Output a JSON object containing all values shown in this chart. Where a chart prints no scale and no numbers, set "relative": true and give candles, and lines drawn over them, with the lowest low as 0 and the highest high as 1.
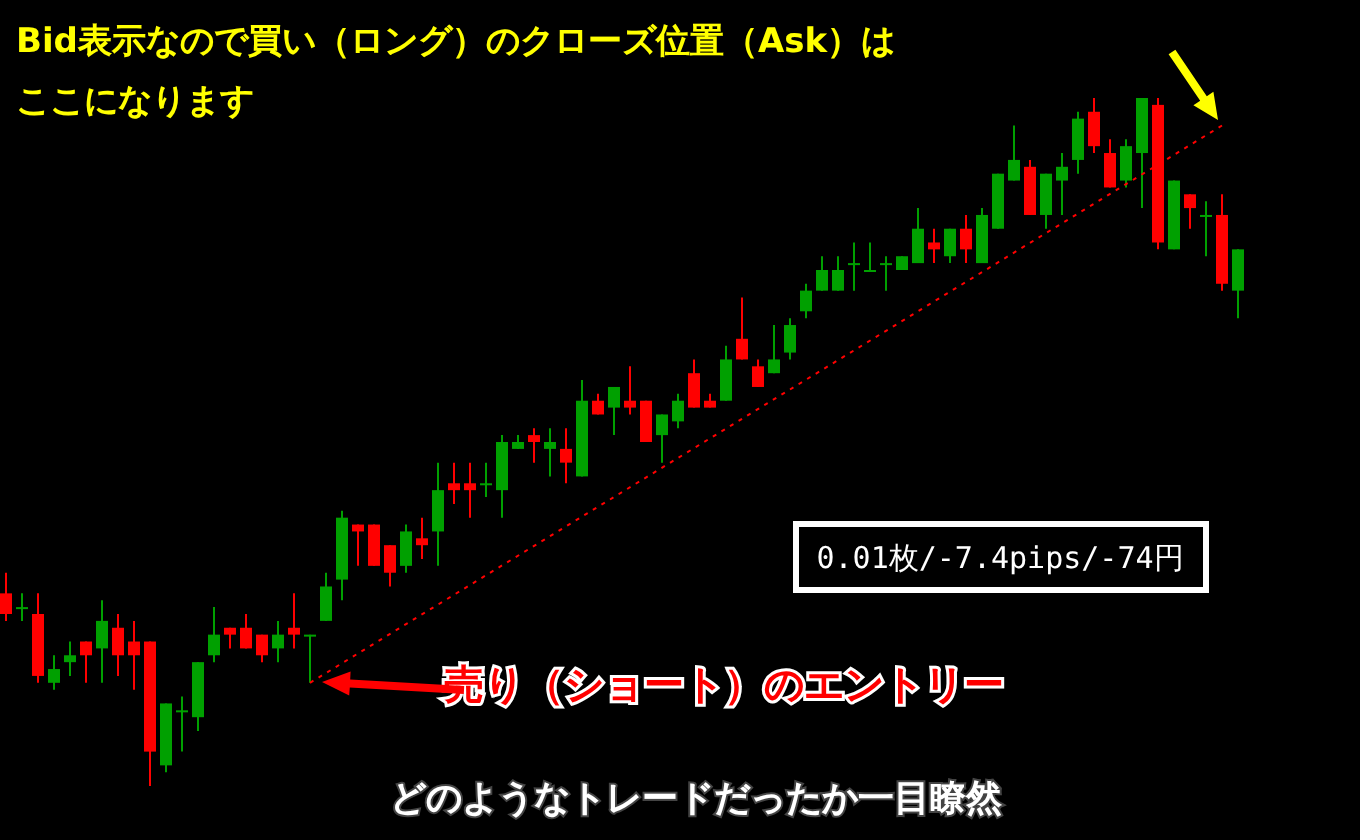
{
  "chart_data": {
    "type": "candlestick",
    "relative": true,
    "title": "Bid表示なので買い（ロング）のクローズ位置（Ask）はここになります",
    "categories": [
      null,
      null,
      null,
      null,
      null,
      null,
      null,
      null,
      null,
      null,
      null,
      null,
      null,
      null,
      null,
      null,
      null,
      null,
      null,
      null,
      null,
      null,
      null,
      null,
      null,
      null,
      null,
      null,
      null,
      null,
      null,
      null,
      null,
      null,
      null,
      null,
      null,
      null,
      null,
      null,
      null,
      null,
      null,
      null,
      null,
      null,
      null,
      null,
      null,
      null,
      null,
      null,
      null,
      null,
      null,
      null,
      null,
      null,
      null,
      null,
      null,
      null,
      null,
      null,
      null,
      null,
      null,
      null,
      null,
      null,
      null,
      null,
      null,
      null,
      null,
      null,
      null,
      null
    ],
    "ohlc": [
      [
        0.28,
        0.31,
        0.24,
        0.25
      ],
      [
        0.26,
        0.28,
        0.24,
        0.26
      ],
      [
        0.25,
        0.28,
        0.15,
        0.16
      ],
      [
        0.15,
        0.19,
        0.14,
        0.17
      ],
      [
        0.18,
        0.21,
        0.16,
        0.19
      ],
      [
        0.21,
        0.21,
        0.15,
        0.19
      ],
      [
        0.2,
        0.27,
        0.15,
        0.24
      ],
      [
        0.23,
        0.25,
        0.16,
        0.19
      ],
      [
        0.21,
        0.24,
        0.14,
        0.19
      ],
      [
        0.21,
        0.21,
        0,
        0.05
      ],
      [
        0.03,
        0.12,
        0.02,
        0.12
      ],
      [
        0.11,
        0.13,
        0.05,
        0.11
      ],
      [
        0.1,
        0.18,
        0.08,
        0.18
      ],
      [
        0.19,
        0.26,
        0.18,
        0.22
      ],
      [
        0.23,
        0.23,
        0.2,
        0.22
      ],
      [
        0.23,
        0.25,
        0.2,
        0.2
      ],
      [
        0.22,
        0.22,
        0.18,
        0.19
      ],
      [
        0.2,
        0.24,
        0.18,
        0.22
      ],
      [
        0.23,
        0.28,
        0.2,
        0.22
      ],
      [
        0.22,
        0.22,
        0.15,
        0.22
      ],
      [
        0.24,
        0.31,
        0.24,
        0.29
      ],
      [
        0.3,
        0.4,
        0.27,
        0.39
      ],
      [
        0.38,
        0.38,
        0.32,
        0.37
      ],
      [
        0.38,
        0.38,
        0.32,
        0.32
      ],
      [
        0.35,
        0.35,
        0.29,
        0.31
      ],
      [
        0.32,
        0.38,
        0.31,
        0.37
      ],
      [
        0.36,
        0.39,
        0.33,
        0.35
      ],
      [
        0.37,
        0.47,
        0.32,
        0.43
      ],
      [
        0.44,
        0.47,
        0.41,
        0.43
      ],
      [
        0.44,
        0.47,
        0.39,
        0.43
      ],
      [
        0.44,
        0.47,
        0.42,
        0.44
      ],
      [
        0.43,
        0.51,
        0.39,
        0.5
      ],
      [
        0.49,
        0.51,
        0.49,
        0.5
      ],
      [
        0.51,
        0.52,
        0.47,
        0.5
      ],
      [
        0.49,
        0.52,
        0.45,
        0.5
      ],
      [
        0.49,
        0.52,
        0.44,
        0.47
      ],
      [
        0.45,
        0.59,
        0.45,
        0.56
      ],
      [
        0.56,
        0.57,
        0.54,
        0.54
      ],
      [
        0.55,
        0.58,
        0.51,
        0.58
      ],
      [
        0.56,
        0.61,
        0.54,
        0.55
      ],
      [
        0.56,
        0.56,
        0.5,
        0.5
      ],
      [
        0.51,
        0.54,
        0.47,
        0.54
      ],
      [
        0.53,
        0.57,
        0.52,
        0.56
      ],
      [
        0.6,
        0.62,
        0.55,
        0.55
      ],
      [
        0.56,
        0.57,
        0.55,
        0.55
      ],
      [
        0.56,
        0.64,
        0.56,
        0.62
      ],
      [
        0.65,
        0.71,
        0.62,
        0.62
      ],
      [
        0.61,
        0.62,
        0.58,
        0.58
      ],
      [
        0.6,
        0.67,
        0.6,
        0.62
      ],
      [
        0.63,
        0.68,
        0.62,
        0.67
      ],
      [
        0.69,
        0.73,
        0.68,
        0.72
      ],
      [
        0.72,
        0.77,
        0.72,
        0.75
      ],
      [
        0.72,
        0.77,
        0.72,
        0.75
      ],
      [
        0.76,
        0.79,
        0.72,
        0.76
      ],
      [
        0.75,
        0.79,
        0.75,
        0.75
      ],
      [
        0.76,
        0.77,
        0.72,
        0.76
      ],
      [
        0.75,
        0.77,
        0.75,
        0.77
      ],
      [
        0.76,
        0.84,
        0.76,
        0.81
      ],
      [
        0.79,
        0.81,
        0.76,
        0.78
      ],
      [
        0.77,
        0.81,
        0.76,
        0.81
      ],
      [
        0.81,
        0.83,
        0.76,
        0.78
      ],
      [
        0.76,
        0.84,
        0.76,
        0.83
      ],
      [
        0.81,
        0.89,
        0.81,
        0.89
      ],
      [
        0.88,
        0.96,
        0.88,
        0.91
      ],
      [
        0.9,
        0.91,
        0.83,
        0.83
      ],
      [
        0.83,
        0.89,
        0.81,
        0.89
      ],
      [
        0.88,
        0.92,
        0.83,
        0.9
      ],
      [
        0.91,
        0.98,
        0.89,
        0.97
      ],
      [
        0.98,
        1,
        0.92,
        0.93
      ],
      [
        0.92,
        0.94,
        0.87,
        0.87
      ],
      [
        0.88,
        0.94,
        0.87,
        0.93
      ],
      [
        0.92,
        1,
        0.84,
        1
      ],
      [
        0.99,
        1,
        0.78,
        0.79
      ],
      [
        0.78,
        0.88,
        0.78,
        0.88
      ],
      [
        0.86,
        0.86,
        0.81,
        0.84
      ],
      [
        0.83,
        0.85,
        0.77,
        0.83
      ],
      [
        0.83,
        0.86,
        0.72,
        0.73
      ],
      [
        0.72,
        0.78,
        0.68,
        0.78
      ]
    ],
    "series": [
      {
        "type": "line",
        "values": [
          null,
          null,
          null,
          null,
          null,
          null,
          null,
          null,
          null,
          null,
          null,
          null,
          null,
          null,
          null,
          null,
          null,
          null,
          null,
          0.15,
          null,
          null,
          null,
          null,
          null,
          null,
          null,
          null,
          null,
          null,
          null,
          null,
          null,
          null,
          null,
          null,
          null,
          null,
          null,
          null,
          null,
          null,
          null,
          null,
          null,
          null,
          null,
          null,
          null,
          null,
          null,
          null,
          null,
          null,
          null,
          null,
          null,
          null,
          null,
          null,
          null,
          null,
          null,
          null,
          null,
          null,
          null,
          null,
          null,
          null,
          null,
          null,
          null,
          null,
          null,
          null,
          0.96,
          null
        ],
        "color": "#ff0000",
        "line_style": "dotted"
      }
    ],
    "annotations": [
      "0.01枚/-7.4pips/-74円",
      "売り（ショート）のエントリー",
      "どのようなトレードだったか一目瞭然"
    ]
  }
}
